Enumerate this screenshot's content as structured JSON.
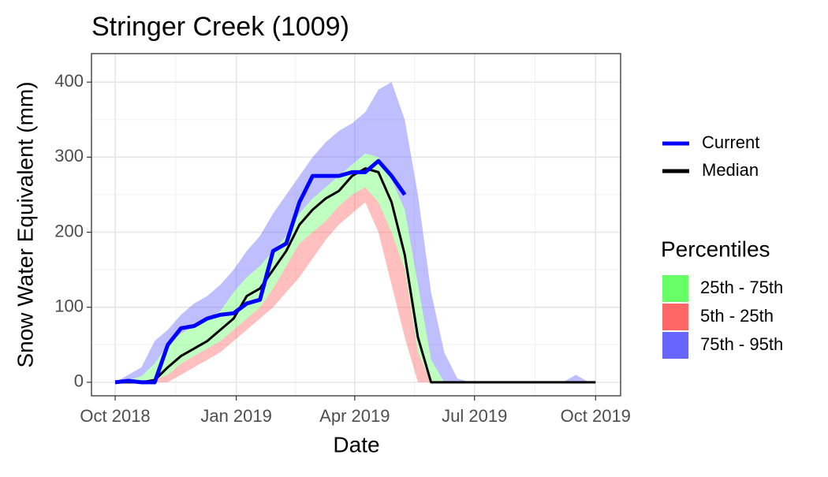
{
  "chart_data": {
    "type": "ribbon-line",
    "title": "Stringer Creek (1009)",
    "x_label": "Date",
    "y_label": "Snow Water Equivalent (mm)",
    "x": [
      0,
      10,
      20,
      30,
      40,
      50,
      60,
      70,
      80,
      90,
      100,
      110,
      120,
      130,
      140,
      150,
      160,
      170,
      180,
      190,
      200,
      210,
      220,
      230,
      240,
      250,
      260,
      270,
      280,
      290,
      300,
      310,
      320,
      330,
      340,
      350,
      360,
      365
    ],
    "xlim": [
      -18,
      384
    ],
    "xticks": [
      {
        "value": 0,
        "label": "Oct 2018"
      },
      {
        "value": 92,
        "label": "Jan 2019"
      },
      {
        "value": 182,
        "label": "Apr 2019"
      },
      {
        "value": 273,
        "label": "Jul 2019"
      },
      {
        "value": 365,
        "label": "Oct 2019"
      }
    ],
    "ylim": [
      -18,
      438
    ],
    "yticks": [
      0,
      100,
      200,
      300,
      400
    ],
    "grid": true,
    "legend_title": "Percentiles",
    "bands": [
      {
        "name": "75th - 95th",
        "color": "#6666ff",
        "lower": [
          0,
          3,
          8,
          25,
          50,
          65,
          75,
          85,
          95,
          120,
          140,
          155,
          175,
          195,
          225,
          245,
          260,
          275,
          290,
          305,
          300,
          270,
          230,
          130,
          30,
          0,
          0,
          0,
          0,
          0,
          0,
          0,
          0,
          0,
          0,
          0,
          0,
          0
        ],
        "upper": [
          0,
          10,
          20,
          55,
          70,
          90,
          105,
          115,
          130,
          150,
          175,
          195,
          225,
          250,
          275,
          300,
          320,
          335,
          345,
          360,
          390,
          400,
          350,
          250,
          120,
          40,
          5,
          0,
          0,
          0,
          0,
          0,
          0,
          0,
          0,
          10,
          0,
          0
        ]
      },
      {
        "name": "25th - 75th",
        "color": "#66ff66",
        "lower": [
          0,
          0,
          0,
          3,
          10,
          25,
          35,
          45,
          55,
          70,
          85,
          100,
          125,
          155,
          185,
          200,
          215,
          235,
          250,
          260,
          240,
          200,
          150,
          40,
          0,
          0,
          0,
          0,
          0,
          0,
          0,
          0,
          0,
          0,
          0,
          0,
          0,
          0
        ],
        "upper": [
          0,
          3,
          8,
          25,
          50,
          65,
          75,
          85,
          95,
          120,
          140,
          155,
          175,
          195,
          225,
          245,
          260,
          275,
          290,
          305,
          300,
          270,
          230,
          130,
          30,
          0,
          0,
          0,
          0,
          0,
          0,
          0,
          0,
          0,
          0,
          0,
          0,
          0
        ]
      },
      {
        "name": "5th - 25th",
        "color": "#ff6666",
        "lower": [
          0,
          0,
          0,
          0,
          0,
          10,
          20,
          30,
          40,
          55,
          70,
          85,
          100,
          120,
          140,
          165,
          190,
          210,
          225,
          240,
          200,
          130,
          60,
          0,
          0,
          0,
          0,
          0,
          0,
          0,
          0,
          0,
          0,
          0,
          0,
          0,
          0,
          0
        ],
        "upper": [
          0,
          0,
          0,
          3,
          10,
          25,
          35,
          45,
          55,
          70,
          85,
          100,
          125,
          155,
          185,
          200,
          215,
          235,
          250,
          260,
          240,
          200,
          150,
          40,
          0,
          0,
          0,
          0,
          0,
          0,
          0,
          0,
          0,
          0,
          0,
          0,
          0,
          0
        ]
      }
    ],
    "series": [
      {
        "name": "Current",
        "color": "#0000ff",
        "values": [
          0,
          2,
          0,
          0,
          50,
          72,
          75,
          85,
          90,
          92,
          105,
          110,
          175,
          185,
          240,
          275,
          275,
          275,
          280,
          280,
          295,
          275,
          250,
          null,
          null,
          null,
          null,
          null,
          null,
          null,
          null,
          null,
          null,
          null,
          null,
          null,
          null,
          null
        ]
      },
      {
        "name": "Median",
        "color": "#000000",
        "values": [
          0,
          0,
          0,
          3,
          20,
          35,
          45,
          55,
          70,
          85,
          115,
          125,
          150,
          175,
          210,
          230,
          245,
          255,
          275,
          285,
          280,
          240,
          170,
          60,
          0,
          0,
          0,
          0,
          0,
          0,
          0,
          0,
          0,
          0,
          0,
          0,
          0,
          0
        ]
      }
    ]
  }
}
